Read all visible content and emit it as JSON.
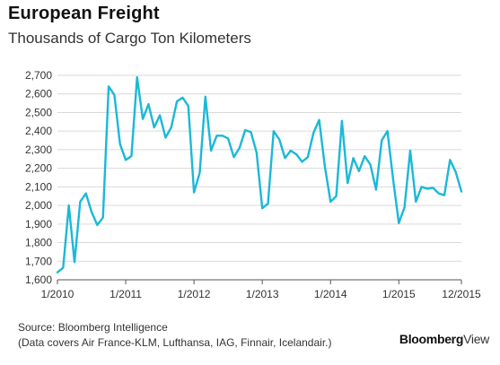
{
  "header": {
    "title": "European Freight",
    "subtitle": "Thousands of Cargo Ton Kilometers"
  },
  "footer": {
    "source_line1": "Source: Bloomberg Intelligence",
    "source_line2": "(Data covers Air France-KLM, Lufthansa, IAG, Finnair, Icelandair.)",
    "brand_bold": "Bloomberg",
    "brand_light": "View"
  },
  "colors": {
    "line": "#1bb8d8",
    "grid": "#d9d9d9",
    "axis": "#555555"
  },
  "chart_data": {
    "type": "line",
    "title": "European Freight",
    "subtitle": "Thousands of Cargo Ton Kilometers",
    "xlabel": "",
    "ylabel": "",
    "ylim": [
      1600,
      2700
    ],
    "yticks": [
      1600,
      1700,
      1800,
      1900,
      2000,
      2100,
      2200,
      2300,
      2400,
      2500,
      2600,
      2700
    ],
    "ytick_labels": [
      "1,600",
      "1,700",
      "1,800",
      "1,900",
      "2,000",
      "2,100",
      "2,200",
      "2,300",
      "2,400",
      "2,500",
      "2,600",
      "2,700"
    ],
    "xtick_labels": [
      "1/2010",
      "1/2011",
      "1/2012",
      "1/2013",
      "1/2014",
      "1/2015",
      "12/2015"
    ],
    "xtick_months": [
      0,
      12,
      24,
      36,
      48,
      60,
      71
    ],
    "grid": true,
    "x_start": "2010-01",
    "x_end": "2015-12",
    "series": [
      {
        "values": [
          1640,
          1665,
          2000,
          1695,
          2020,
          2065,
          1965,
          1895,
          1935,
          2640,
          2595,
          2330,
          2245,
          2265,
          2690,
          2465,
          2545,
          2420,
          2485,
          2365,
          2420,
          2560,
          2580,
          2535,
          2070,
          2175,
          2585,
          2295,
          2375,
          2375,
          2360,
          2260,
          2310,
          2405,
          2395,
          2285,
          1985,
          2010,
          2400,
          2355,
          2255,
          2295,
          2275,
          2235,
          2260,
          2390,
          2460,
          2210,
          2020,
          2050,
          2455,
          2120,
          2255,
          2185,
          2265,
          2220,
          2085,
          2350,
          2400,
          2140,
          1905,
          1990,
          2295,
          2020,
          2100,
          2090,
          2095,
          2065,
          2055,
          2245,
          2180,
          2075
        ]
      }
    ]
  }
}
